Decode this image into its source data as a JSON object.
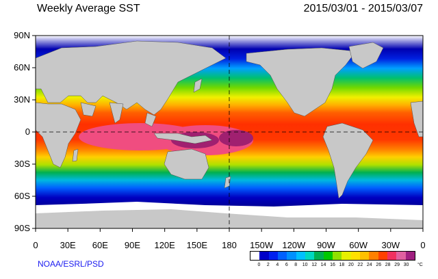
{
  "title_left": "Weekly Average SST",
  "title_right": "2015/03/01 - 2015/03/07",
  "credit": "NOAA/ESRL/PSD",
  "lat_labels": [
    "90N",
    "60N",
    "30N",
    "0",
    "30S",
    "60S",
    "90S"
  ],
  "lon_labels": [
    "0",
    "30E",
    "60E",
    "90E",
    "120E",
    "150E",
    "180",
    "150W",
    "120W",
    "90W",
    "60W",
    "30W",
    "0"
  ],
  "legend": {
    "unit": "°C",
    "ticks": [
      "0",
      "2",
      "4",
      "6",
      "8",
      "10",
      "12",
      "14",
      "16",
      "18",
      "20",
      "22",
      "24",
      "26",
      "28",
      "29",
      "30"
    ],
    "colors": [
      "#ffffff",
      "#0000c8",
      "#0020f0",
      "#0060ff",
      "#0090ff",
      "#00c0ff",
      "#00d8c0",
      "#00b050",
      "#00c800",
      "#90e000",
      "#e8f000",
      "#ffe000",
      "#ffc000",
      "#ff8000",
      "#ff4000",
      "#f03060",
      "#e060a0",
      "#a02080"
    ]
  },
  "colors": {
    "land": "#c8c8c8",
    "ice": "#ffffff",
    "grid": "#000000"
  }
}
